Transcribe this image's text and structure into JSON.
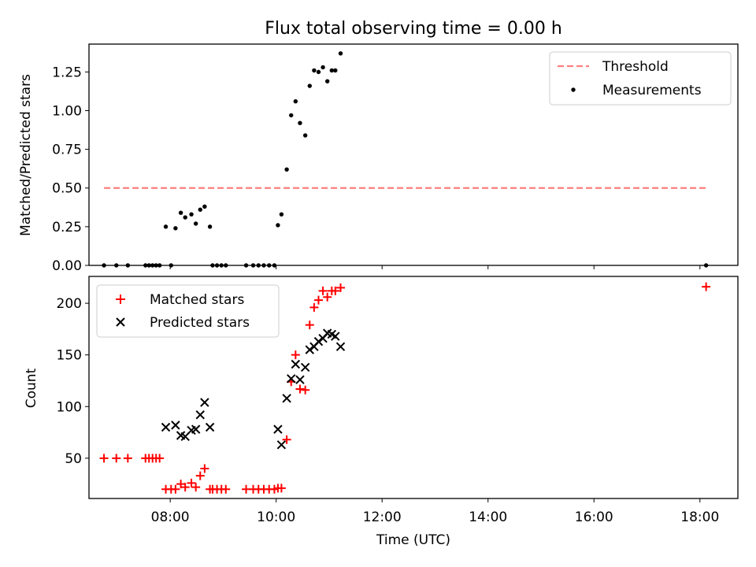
{
  "chart_data": [
    {
      "type": "line",
      "title": "Flux total observing time = 0.00 h",
      "xlabel": "",
      "ylabel": "Matched/Predicted stars",
      "xlim": [
        "06:28",
        "18:43"
      ],
      "ylim": [
        0.0,
        1.43
      ],
      "yticks": [
        0.0,
        0.25,
        0.5,
        0.75,
        1.0,
        1.25
      ],
      "ytick_labels": [
        "0.00",
        "0.25",
        "0.50",
        "0.75",
        "1.00",
        "1.25"
      ],
      "xticks": [
        "08:00",
        "10:00",
        "12:00",
        "14:00",
        "16:00",
        "18:00"
      ],
      "legend": {
        "location": "top-right",
        "entries": [
          "Threshold",
          "Measurements"
        ]
      },
      "series": [
        {
          "name": "Threshold",
          "style": "dashed",
          "color": "#ff7f7f",
          "points": [
            [
              "06:45",
              0.5
            ],
            [
              "18:07",
              0.5
            ]
          ]
        },
        {
          "name": "Measurements",
          "style": "dots",
          "color": "#000000",
          "points": [
            [
              "06:45",
              0.0
            ],
            [
              "06:59",
              0.0
            ],
            [
              "07:12",
              0.0
            ],
            [
              "07:32",
              0.0
            ],
            [
              "07:36",
              0.0
            ],
            [
              "07:40",
              0.0
            ],
            [
              "07:44",
              0.0
            ],
            [
              "07:48",
              0.0
            ],
            [
              "07:55",
              0.25
            ],
            [
              "08:01",
              0.0
            ],
            [
              "08:06",
              0.24
            ],
            [
              "08:12",
              0.34
            ],
            [
              "08:17",
              0.31
            ],
            [
              "08:24",
              0.33
            ],
            [
              "08:29",
              0.27
            ],
            [
              "08:34",
              0.36
            ],
            [
              "08:39",
              0.38
            ],
            [
              "08:45",
              0.25
            ],
            [
              "08:48",
              0.0
            ],
            [
              "08:53",
              0.0
            ],
            [
              "08:58",
              0.0
            ],
            [
              "09:03",
              0.0
            ],
            [
              "09:26",
              0.0
            ],
            [
              "09:34",
              0.0
            ],
            [
              "09:40",
              0.0
            ],
            [
              "09:46",
              0.0
            ],
            [
              "09:52",
              0.0
            ],
            [
              "09:58",
              0.0
            ],
            [
              "10:02",
              0.26
            ],
            [
              "10:06",
              0.33
            ],
            [
              "10:12",
              0.62
            ],
            [
              "10:17",
              0.97
            ],
            [
              "10:22",
              1.06
            ],
            [
              "10:27",
              0.92
            ],
            [
              "10:33",
              0.84
            ],
            [
              "10:38",
              1.16
            ],
            [
              "10:43",
              1.26
            ],
            [
              "10:48",
              1.25
            ],
            [
              "10:53",
              1.28
            ],
            [
              "10:58",
              1.19
            ],
            [
              "11:03",
              1.26
            ],
            [
              "11:07",
              1.26
            ],
            [
              "11:13",
              1.37
            ],
            [
              "18:07",
              0.0
            ]
          ]
        }
      ]
    },
    {
      "type": "scatter",
      "title": "",
      "xlabel": "Time (UTC)",
      "ylabel": "Count",
      "xlim": [
        "06:28",
        "18:43"
      ],
      "ylim": [
        11,
        226
      ],
      "yticks": [
        50,
        100,
        150,
        200
      ],
      "xticks": [
        "08:00",
        "10:00",
        "12:00",
        "14:00",
        "16:00",
        "18:00"
      ],
      "legend": {
        "location": "top-left",
        "entries": [
          "Matched stars",
          "Predicted stars"
        ]
      },
      "series": [
        {
          "name": "Matched stars",
          "marker": "+",
          "color": "#ff0000",
          "points": [
            [
              "06:45",
              50
            ],
            [
              "06:59",
              50
            ],
            [
              "07:12",
              50
            ],
            [
              "07:32",
              50
            ],
            [
              "07:36",
              50
            ],
            [
              "07:40",
              50
            ],
            [
              "07:44",
              50
            ],
            [
              "07:48",
              50
            ],
            [
              "07:55",
              20
            ],
            [
              "08:01",
              20
            ],
            [
              "08:06",
              20
            ],
            [
              "08:12",
              25
            ],
            [
              "08:17",
              22
            ],
            [
              "08:24",
              26
            ],
            [
              "08:29",
              22
            ],
            [
              "08:34",
              33
            ],
            [
              "08:39",
              40
            ],
            [
              "08:45",
              20
            ],
            [
              "08:48",
              20
            ],
            [
              "08:53",
              20
            ],
            [
              "08:58",
              20
            ],
            [
              "09:03",
              20
            ],
            [
              "09:26",
              20
            ],
            [
              "09:34",
              20
            ],
            [
              "09:40",
              20
            ],
            [
              "09:46",
              20
            ],
            [
              "09:52",
              20
            ],
            [
              "09:58",
              20
            ],
            [
              "10:02",
              21
            ],
            [
              "10:06",
              21
            ],
            [
              "10:12",
              68
            ],
            [
              "10:17",
              124
            ],
            [
              "10:22",
              150
            ],
            [
              "10:27",
              117
            ],
            [
              "10:33",
              116
            ],
            [
              "10:38",
              179
            ],
            [
              "10:43",
              196
            ],
            [
              "10:48",
              203
            ],
            [
              "10:53",
              212
            ],
            [
              "10:58",
              206
            ],
            [
              "11:03",
              212
            ],
            [
              "11:07",
              212
            ],
            [
              "11:13",
              215
            ],
            [
              "18:07",
              216
            ]
          ]
        },
        {
          "name": "Predicted stars",
          "marker": "x",
          "color": "#000000",
          "points": [
            [
              "07:55",
              80
            ],
            [
              "08:06",
              82
            ],
            [
              "08:12",
              72
            ],
            [
              "08:17",
              71
            ],
            [
              "08:24",
              77
            ],
            [
              "08:29",
              78
            ],
            [
              "08:34",
              92
            ],
            [
              "08:39",
              104
            ],
            [
              "08:45",
              80
            ],
            [
              "10:02",
              78
            ],
            [
              "10:06",
              63
            ],
            [
              "10:12",
              108
            ],
            [
              "10:17",
              127
            ],
            [
              "10:22",
              141
            ],
            [
              "10:27",
              126
            ],
            [
              "10:33",
              138
            ],
            [
              "10:38",
              155
            ],
            [
              "10:43",
              158
            ],
            [
              "10:48",
              163
            ],
            [
              "10:53",
              166
            ],
            [
              "10:58",
              171
            ],
            [
              "11:03",
              170
            ],
            [
              "11:07",
              168
            ],
            [
              "11:13",
              158
            ]
          ]
        }
      ]
    }
  ]
}
